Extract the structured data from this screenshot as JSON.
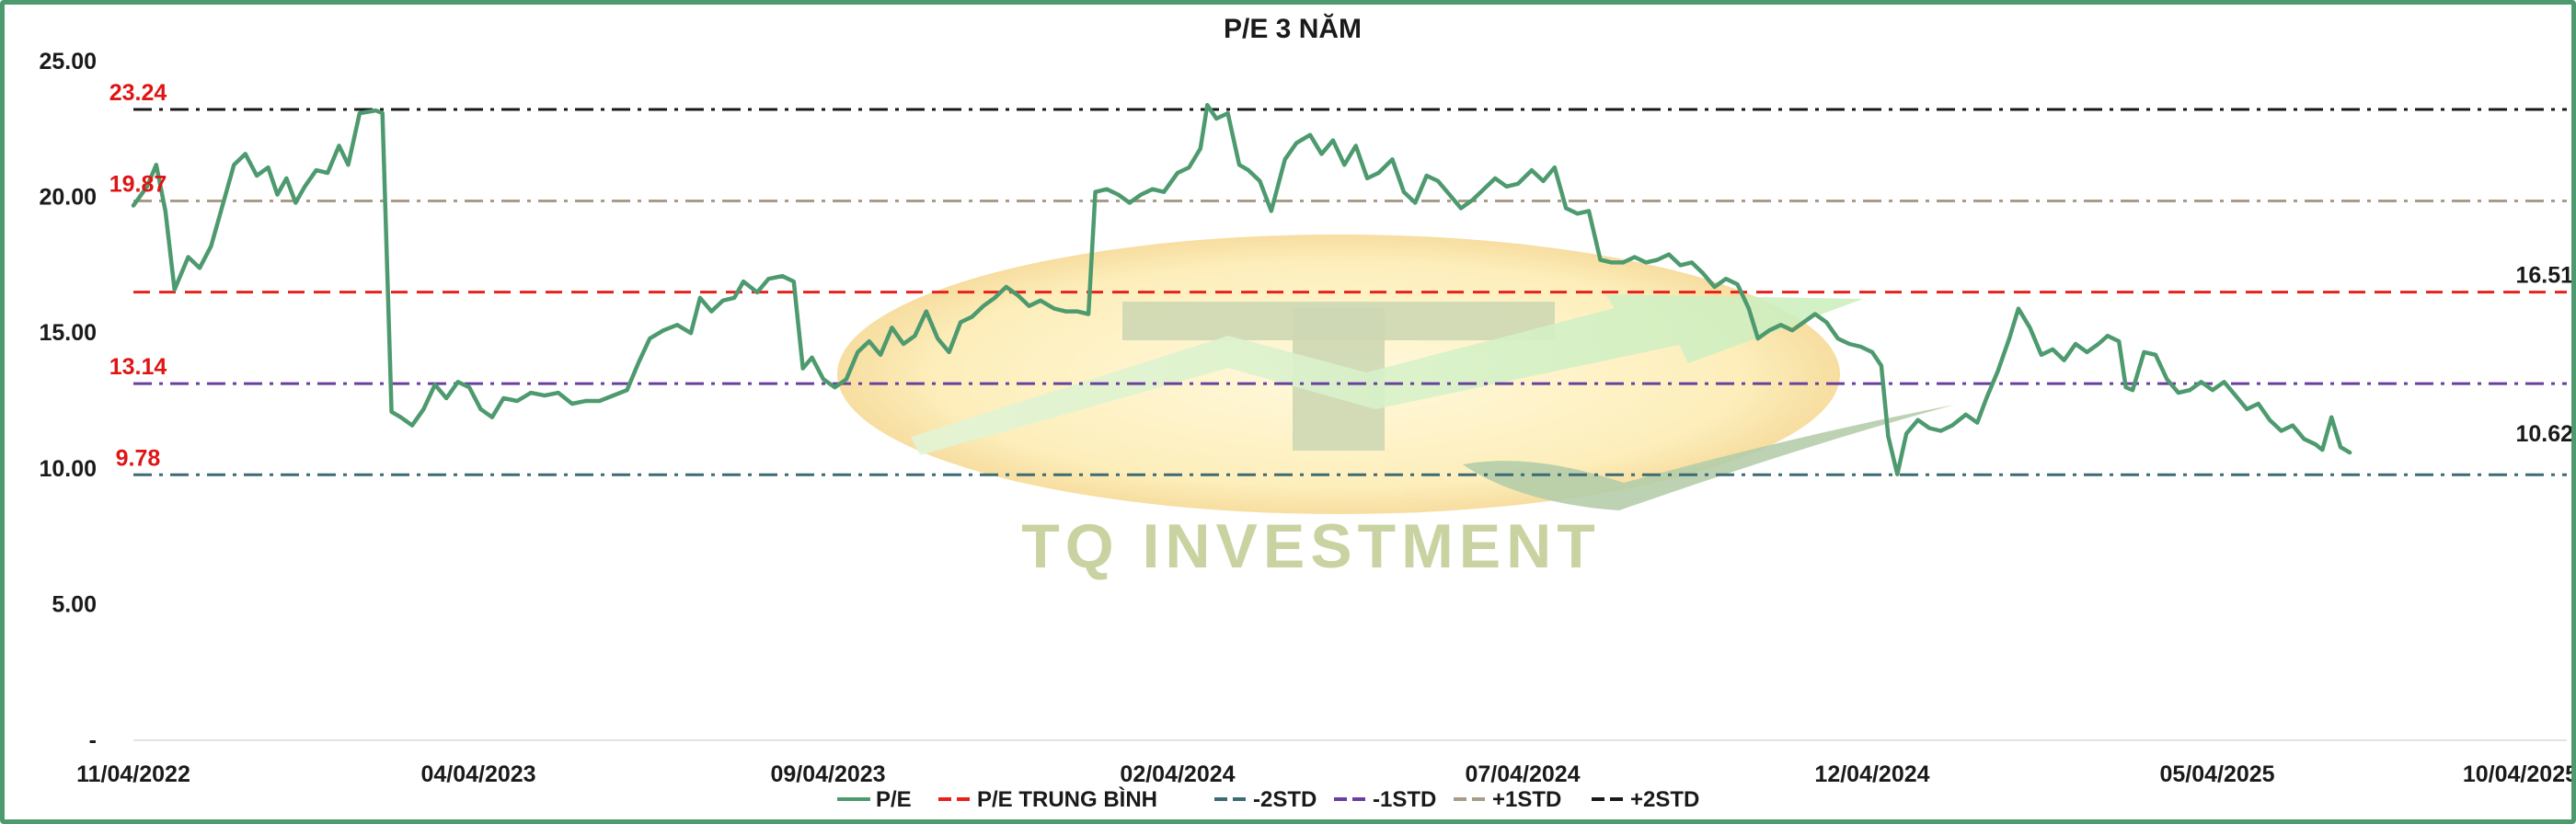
{
  "chart_data": {
    "type": "line",
    "title": "P/E 3 NĂM",
    "xlabel": "",
    "ylabel": "",
    "ylim": [
      0,
      25
    ],
    "yticks": [
      {
        "value": 25,
        "label": "25.00"
      },
      {
        "value": 20,
        "label": "20.00"
      },
      {
        "value": 15,
        "label": "15.00"
      },
      {
        "value": 10,
        "label": "10.00"
      },
      {
        "value": 5,
        "label": "5.00"
      },
      {
        "value": 0,
        "label": "-"
      }
    ],
    "xrange": [
      "2022-11-04",
      "2025-10-04"
    ],
    "xticks": [
      {
        "date": "2022-11-04",
        "label": "11/04/2022"
      },
      {
        "date": "2023-04-04",
        "label": "04/04/2023"
      },
      {
        "date": "2023-09-04",
        "label": "09/04/2023"
      },
      {
        "date": "2024-02-04",
        "label": "02/04/2024"
      },
      {
        "date": "2024-07-04",
        "label": "07/04/2024"
      },
      {
        "date": "2024-12-04",
        "label": "12/04/2024"
      },
      {
        "date": "2025-05-04",
        "label": "05/04/2025"
      },
      {
        "date": "2025-10-04",
        "label": "10/04/2025"
      }
    ],
    "grid": false,
    "legend_position": "bottom",
    "reference_lines": [
      {
        "name": "P/E TRUNG BÌNH",
        "value": 16.51,
        "label": "16.51",
        "color": "#e8201c",
        "style": "dashed"
      },
      {
        "name": "-2STD",
        "value": 9.78,
        "label": "9.78",
        "color": "#3d6b73",
        "style": "dashdot"
      },
      {
        "name": "-1STD",
        "value": 13.14,
        "label": "13.14",
        "color": "#6a3fa0",
        "style": "dashdot"
      },
      {
        "name": "+1STD",
        "value": 19.87,
        "label": "19.87",
        "color": "#a89c88",
        "style": "dashdot"
      },
      {
        "name": "+2STD",
        "value": 23.24,
        "label": "23.24",
        "color": "#1a1a1a",
        "style": "dashdot"
      }
    ],
    "last_value_label": "10.62",
    "series": [
      {
        "name": "P/E",
        "color": "#4e9a6f",
        "points": [
          [
            "2022-11-04",
            19.7
          ],
          [
            "2022-11-10",
            20.4
          ],
          [
            "2022-11-14",
            21.2
          ],
          [
            "2022-11-18",
            19.5
          ],
          [
            "2022-11-22",
            16.6
          ],
          [
            "2022-11-28",
            17.8
          ],
          [
            "2022-12-03",
            17.4
          ],
          [
            "2022-12-08",
            18.2
          ],
          [
            "2022-12-12",
            19.4
          ],
          [
            "2022-12-18",
            21.2
          ],
          [
            "2022-12-23",
            21.6
          ],
          [
            "2022-12-28",
            20.8
          ],
          [
            "2023-01-02",
            21.1
          ],
          [
            "2023-01-06",
            20.1
          ],
          [
            "2023-01-10",
            20.7
          ],
          [
            "2023-01-14",
            19.8
          ],
          [
            "2023-01-18",
            20.4
          ],
          [
            "2023-01-23",
            21.0
          ],
          [
            "2023-01-28",
            20.9
          ],
          [
            "2023-02-02",
            21.9
          ],
          [
            "2023-02-06",
            21.2
          ],
          [
            "2023-02-11",
            23.1
          ],
          [
            "2023-02-18",
            23.2
          ],
          [
            "2023-02-21",
            23.1
          ],
          [
            "2023-02-25",
            12.1
          ],
          [
            "2023-03-01",
            11.9
          ],
          [
            "2023-03-06",
            11.6
          ],
          [
            "2023-03-11",
            12.2
          ],
          [
            "2023-03-16",
            13.1
          ],
          [
            "2023-03-21",
            12.6
          ],
          [
            "2023-03-26",
            13.2
          ],
          [
            "2023-03-31",
            13.0
          ],
          [
            "2023-04-05",
            12.2
          ],
          [
            "2023-04-10",
            11.9
          ],
          [
            "2023-04-15",
            12.6
          ],
          [
            "2023-04-21",
            12.5
          ],
          [
            "2023-04-27",
            12.8
          ],
          [
            "2023-05-03",
            12.7
          ],
          [
            "2023-05-09",
            12.8
          ],
          [
            "2023-05-15",
            12.4
          ],
          [
            "2023-05-21",
            12.5
          ],
          [
            "2023-05-27",
            12.5
          ],
          [
            "2023-06-02",
            12.7
          ],
          [
            "2023-06-08",
            12.9
          ],
          [
            "2023-06-13",
            13.9
          ],
          [
            "2023-06-18",
            14.8
          ],
          [
            "2023-06-24",
            15.1
          ],
          [
            "2023-06-30",
            15.3
          ],
          [
            "2023-07-06",
            15.0
          ],
          [
            "2023-07-10",
            16.3
          ],
          [
            "2023-07-15",
            15.8
          ],
          [
            "2023-07-20",
            16.2
          ],
          [
            "2023-07-25",
            16.3
          ],
          [
            "2023-07-29",
            16.9
          ],
          [
            "2023-08-04",
            16.5
          ],
          [
            "2023-08-09",
            17.0
          ],
          [
            "2023-08-15",
            17.1
          ],
          [
            "2023-08-20",
            16.9
          ],
          [
            "2023-08-24",
            13.7
          ],
          [
            "2023-08-28",
            14.1
          ],
          [
            "2023-09-02",
            13.3
          ],
          [
            "2023-09-07",
            13.0
          ],
          [
            "2023-09-12",
            13.3
          ],
          [
            "2023-09-17",
            14.3
          ],
          [
            "2023-09-22",
            14.7
          ],
          [
            "2023-09-27",
            14.2
          ],
          [
            "2023-10-02",
            15.2
          ],
          [
            "2023-10-07",
            14.6
          ],
          [
            "2023-10-12",
            14.9
          ],
          [
            "2023-10-17",
            15.8
          ],
          [
            "2023-10-22",
            14.8
          ],
          [
            "2023-10-27",
            14.3
          ],
          [
            "2023-11-01",
            15.4
          ],
          [
            "2023-11-06",
            15.6
          ],
          [
            "2023-11-11",
            16.0
          ],
          [
            "2023-11-16",
            16.3
          ],
          [
            "2023-11-21",
            16.7
          ],
          [
            "2023-11-26",
            16.4
          ],
          [
            "2023-12-01",
            16.0
          ],
          [
            "2023-12-06",
            16.2
          ],
          [
            "2023-12-12",
            15.9
          ],
          [
            "2023-12-17",
            15.8
          ],
          [
            "2023-12-22",
            15.8
          ],
          [
            "2023-12-27",
            15.7
          ],
          [
            "2023-12-30",
            20.2
          ],
          [
            "2024-01-04",
            20.3
          ],
          [
            "2024-01-09",
            20.1
          ],
          [
            "2024-01-14",
            19.8
          ],
          [
            "2024-01-19",
            20.1
          ],
          [
            "2024-01-24",
            20.3
          ],
          [
            "2024-01-29",
            20.2
          ],
          [
            "2024-02-04",
            20.9
          ],
          [
            "2024-02-09",
            21.1
          ],
          [
            "2024-02-14",
            21.8
          ],
          [
            "2024-02-17",
            23.4
          ],
          [
            "2024-02-21",
            22.9
          ],
          [
            "2024-02-26",
            23.1
          ],
          [
            "2024-03-02",
            21.2
          ],
          [
            "2024-03-06",
            21.0
          ],
          [
            "2024-03-11",
            20.6
          ],
          [
            "2024-03-16",
            19.5
          ],
          [
            "2024-03-22",
            21.4
          ],
          [
            "2024-03-27",
            22.0
          ],
          [
            "2024-04-02",
            22.3
          ],
          [
            "2024-04-07",
            21.6
          ],
          [
            "2024-04-12",
            22.1
          ],
          [
            "2024-04-17",
            21.2
          ],
          [
            "2024-04-22",
            21.9
          ],
          [
            "2024-04-27",
            20.7
          ],
          [
            "2024-05-02",
            20.9
          ],
          [
            "2024-05-08",
            21.4
          ],
          [
            "2024-05-13",
            20.2
          ],
          [
            "2024-05-18",
            19.8
          ],
          [
            "2024-05-23",
            20.8
          ],
          [
            "2024-05-28",
            20.6
          ],
          [
            "2024-06-02",
            20.1
          ],
          [
            "2024-06-07",
            19.6
          ],
          [
            "2024-06-12",
            19.9
          ],
          [
            "2024-06-17",
            20.3
          ],
          [
            "2024-06-22",
            20.7
          ],
          [
            "2024-06-27",
            20.4
          ],
          [
            "2024-07-02",
            20.5
          ],
          [
            "2024-07-08",
            21.0
          ],
          [
            "2024-07-13",
            20.6
          ],
          [
            "2024-07-18",
            21.1
          ],
          [
            "2024-07-23",
            19.6
          ],
          [
            "2024-07-28",
            19.4
          ],
          [
            "2024-08-02",
            19.5
          ],
          [
            "2024-08-07",
            17.7
          ],
          [
            "2024-08-12",
            17.6
          ],
          [
            "2024-08-17",
            17.6
          ],
          [
            "2024-08-22",
            17.8
          ],
          [
            "2024-08-27",
            17.6
          ],
          [
            "2024-09-01",
            17.7
          ],
          [
            "2024-09-06",
            17.9
          ],
          [
            "2024-09-11",
            17.5
          ],
          [
            "2024-09-16",
            17.6
          ],
          [
            "2024-09-21",
            17.2
          ],
          [
            "2024-09-26",
            16.7
          ],
          [
            "2024-10-01",
            17.0
          ],
          [
            "2024-10-06",
            16.8
          ],
          [
            "2024-10-11",
            15.9
          ],
          [
            "2024-10-15",
            14.8
          ],
          [
            "2024-10-20",
            15.1
          ],
          [
            "2024-10-25",
            15.3
          ],
          [
            "2024-10-30",
            15.1
          ],
          [
            "2024-11-04",
            15.4
          ],
          [
            "2024-11-09",
            15.7
          ],
          [
            "2024-11-14",
            15.4
          ],
          [
            "2024-11-19",
            14.8
          ],
          [
            "2024-11-24",
            14.6
          ],
          [
            "2024-11-29",
            14.5
          ],
          [
            "2024-12-04",
            14.3
          ],
          [
            "2024-12-08",
            13.8
          ],
          [
            "2024-12-11",
            11.2
          ],
          [
            "2024-12-15",
            9.8
          ],
          [
            "2024-12-19",
            11.3
          ],
          [
            "2024-12-24",
            11.8
          ],
          [
            "2024-12-29",
            11.5
          ],
          [
            "2025-01-03",
            11.4
          ],
          [
            "2025-01-08",
            11.6
          ],
          [
            "2025-01-14",
            12.0
          ],
          [
            "2025-01-19",
            11.7
          ],
          [
            "2025-01-23",
            12.6
          ],
          [
            "2025-01-28",
            13.6
          ],
          [
            "2025-02-02",
            14.8
          ],
          [
            "2025-02-06",
            15.9
          ],
          [
            "2025-02-11",
            15.2
          ],
          [
            "2025-02-16",
            14.2
          ],
          [
            "2025-02-21",
            14.4
          ],
          [
            "2025-02-26",
            14.0
          ],
          [
            "2025-03-03",
            14.6
          ],
          [
            "2025-03-08",
            14.3
          ],
          [
            "2025-03-13",
            14.6
          ],
          [
            "2025-03-17",
            14.9
          ],
          [
            "2025-03-22",
            14.7
          ],
          [
            "2025-03-25",
            13.0
          ],
          [
            "2025-03-28",
            12.9
          ],
          [
            "2025-04-02",
            14.3
          ],
          [
            "2025-04-07",
            14.2
          ],
          [
            "2025-04-12",
            13.3
          ],
          [
            "2025-04-17",
            12.8
          ],
          [
            "2025-04-22",
            12.9
          ],
          [
            "2025-04-27",
            13.2
          ],
          [
            "2025-05-02",
            12.9
          ],
          [
            "2025-05-07",
            13.2
          ],
          [
            "2025-05-12",
            12.7
          ],
          [
            "2025-05-17",
            12.2
          ],
          [
            "2025-05-22",
            12.4
          ],
          [
            "2025-05-27",
            11.8
          ],
          [
            "2025-06-01",
            11.4
          ],
          [
            "2025-06-06",
            11.6
          ],
          [
            "2025-06-11",
            11.1
          ],
          [
            "2025-06-16",
            10.9
          ],
          [
            "2025-06-19",
            10.7
          ],
          [
            "2025-06-23",
            11.9
          ],
          [
            "2025-06-27",
            10.8
          ],
          [
            "2025-07-01",
            10.6
          ]
        ]
      }
    ]
  }
}
